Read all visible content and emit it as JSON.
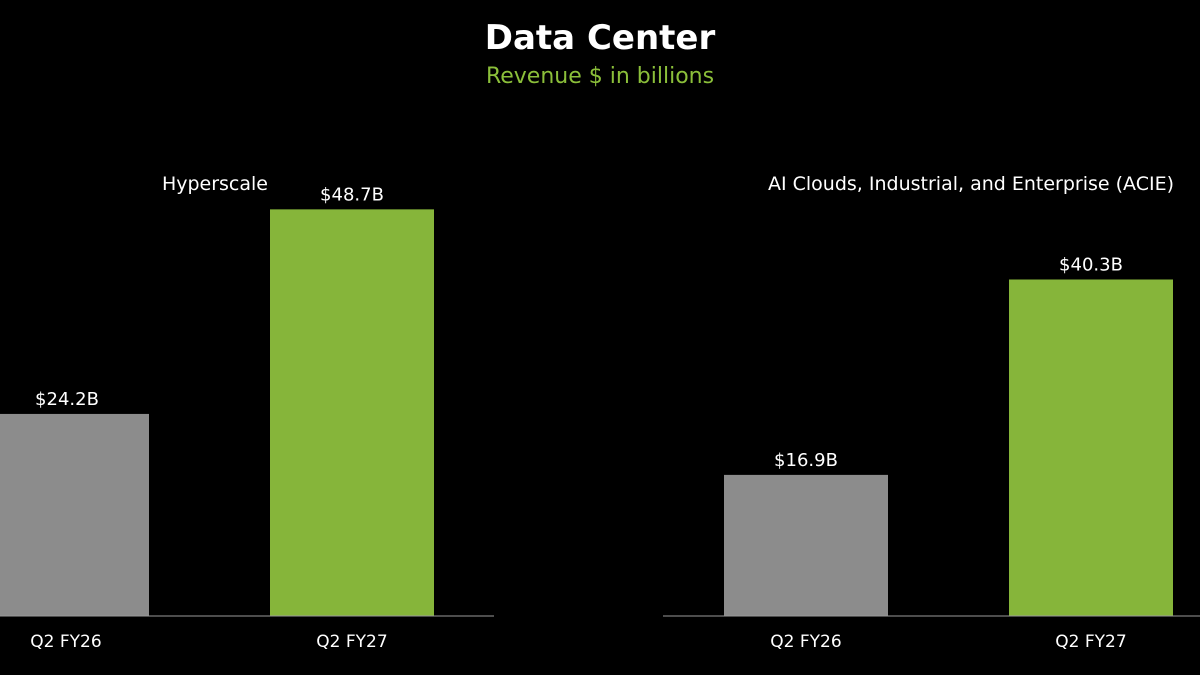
{
  "header": {
    "title": "Data Center",
    "subtitle": "Revenue $ in billions"
  },
  "colors": {
    "background": "#000000",
    "prior": "#8c8c8c",
    "current": "#86b53a",
    "subtitle": "#8bbf3a",
    "axis": "#9a9a9a"
  },
  "chart_data": [
    {
      "type": "bar",
      "title": "Hyperscale",
      "categories": [
        "Q2 FY26",
        "Q2 FY27"
      ],
      "values": [
        24.2,
        48.7
      ],
      "data_labels": [
        "$24.2B",
        "$48.7B"
      ],
      "units": "billions USD",
      "ylim": [
        0,
        50
      ],
      "grid": false
    },
    {
      "type": "bar",
      "title": "AI Clouds, Industrial, and Enterprise (ACIE)",
      "categories": [
        "Q2 FY26",
        "Q2 FY27"
      ],
      "values": [
        16.9,
        40.3
      ],
      "data_labels": [
        "$16.9B",
        "$40.3B"
      ],
      "units": "billions USD",
      "ylim": [
        0,
        50
      ],
      "grid": false
    }
  ]
}
